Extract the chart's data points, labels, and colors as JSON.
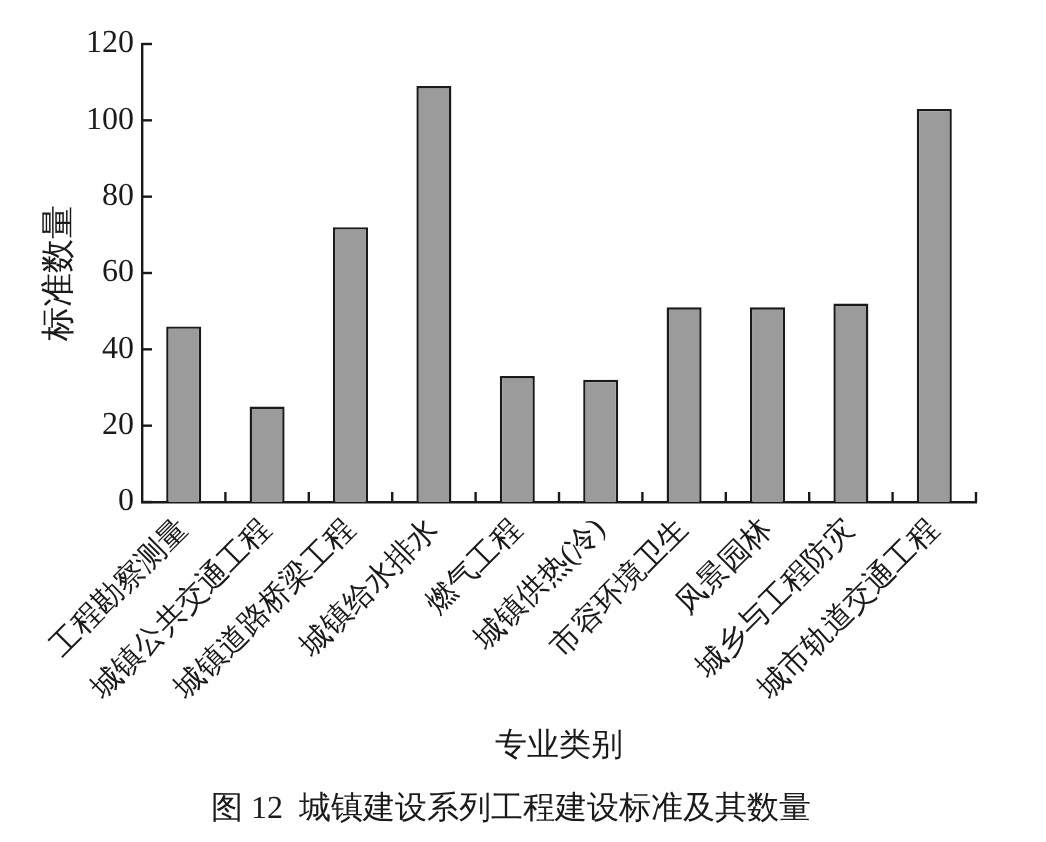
{
  "chart_data": {
    "type": "bar",
    "categories": [
      "工程勘察测量",
      "城镇公共交通工程",
      "城镇道路桥梁工程",
      "城镇给水排水",
      "燃气工程",
      "城镇供热(冷)",
      "市容环境卫生",
      "风景园林",
      "城乡与工程防灾",
      "城市轨道交通工程"
    ],
    "values": [
      46,
      25,
      72,
      109,
      33,
      32,
      51,
      51,
      52,
      103
    ],
    "color": "#9b9b9b",
    "xlabel": "专业类别",
    "ylabel": "标准数量",
    "ylim": [
      0,
      120
    ],
    "yticks": [
      0,
      20,
      40,
      60,
      80,
      100,
      120
    ],
    "annotations": [
      "图 12  城镇建设系列工程建设标准及其数量"
    ]
  }
}
